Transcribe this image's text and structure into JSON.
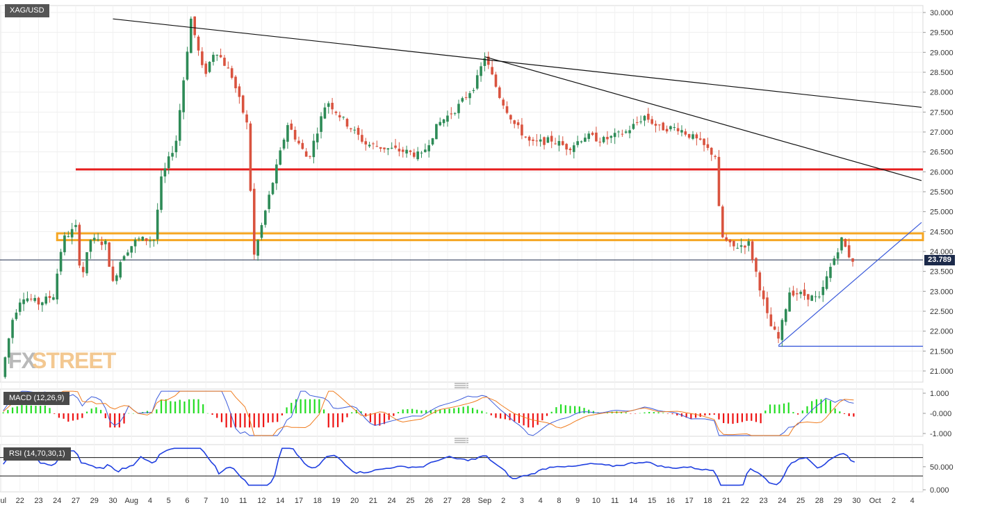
{
  "symbol": "XAG/USD",
  "watermark": {
    "fx": "FX",
    "street": "STREET"
  },
  "last_price": "23.789",
  "colors": {
    "up": "#2e8b57",
    "down": "#d9533f",
    "resistance_red": "#e61e1e",
    "zone_orange": "#f5a623",
    "trendline_blue": "#3b5bdb",
    "macd_line": "#3b5bdb",
    "signal_line": "#f07c1e",
    "rsi_line": "#1f3fe0",
    "price_tag_bg": "#1c2a4a"
  },
  "indicators": {
    "macd_label": "MACD (12,26,9)",
    "rsi_label": "RSI (14,70,30,1)"
  },
  "chart_data": [
    {
      "type": "candlestick",
      "price_axis_ticks": [
        "30.000",
        "29.500",
        "29.000",
        "28.500",
        "28.000",
        "27.500",
        "27.000",
        "26.500",
        "26.000",
        "25.500",
        "25.000",
        "24.500",
        "24.000",
        "23.500",
        "23.000",
        "22.500",
        "22.000",
        "21.500",
        "21.000"
      ],
      "ylim": [
        20.8,
        30.15
      ],
      "x_ticks": [
        "Jul",
        "22",
        "23",
        "24",
        "27",
        "29",
        "30",
        "Aug",
        "4",
        "5",
        "6",
        "7",
        "10",
        "11",
        "12",
        "14",
        "17",
        "18",
        "19",
        "20",
        "21",
        "24",
        "25",
        "26",
        "27",
        "28",
        "Sep",
        "2",
        "3",
        "4",
        "8",
        "9",
        "10",
        "11",
        "14",
        "15",
        "16",
        "17",
        "18",
        "21",
        "22",
        "23",
        "24",
        "25",
        "28",
        "29",
        "30",
        "Oct",
        "2",
        "4"
      ],
      "key_prices": {
        "open_first": 20.85,
        "jul_peak": 29.84,
        "aug_low": 23.5,
        "sep_high": 28.89,
        "sep_low": 21.64,
        "last": 23.789
      },
      "horizontal_levels": [
        {
          "name": "resistance",
          "value": 26.06
        },
        {
          "name": "supply_zone_upper",
          "value": 24.42
        },
        {
          "name": "supply_zone_lower",
          "value": 24.32
        },
        {
          "name": "support",
          "value": 21.62
        },
        {
          "name": "last_price_line",
          "value": 23.789
        }
      ],
      "trendlines": [
        {
          "name": "long_downtrend",
          "from": [
            6,
            29.84
          ],
          "to": [
            49.5,
            27.62
          ]
        },
        {
          "name": "short_downtrend",
          "from": [
            26,
            28.89
          ],
          "to": [
            49.5,
            25.78
          ]
        },
        {
          "name": "uptrend_support",
          "from": [
            41.8,
            21.64
          ],
          "to": [
            49.5,
            24.73
          ]
        }
      ]
    },
    {
      "type": "line",
      "name": "MACD",
      "y_ticks": [
        "1.000",
        "-0.000",
        "-1.000"
      ],
      "ylim": [
        -1.2,
        1.15
      ]
    },
    {
      "type": "line",
      "name": "RSI",
      "y_ticks": [
        "50.000",
        "0.000"
      ],
      "levels": [
        70,
        30
      ],
      "ylim": [
        0,
        95
      ]
    }
  ]
}
